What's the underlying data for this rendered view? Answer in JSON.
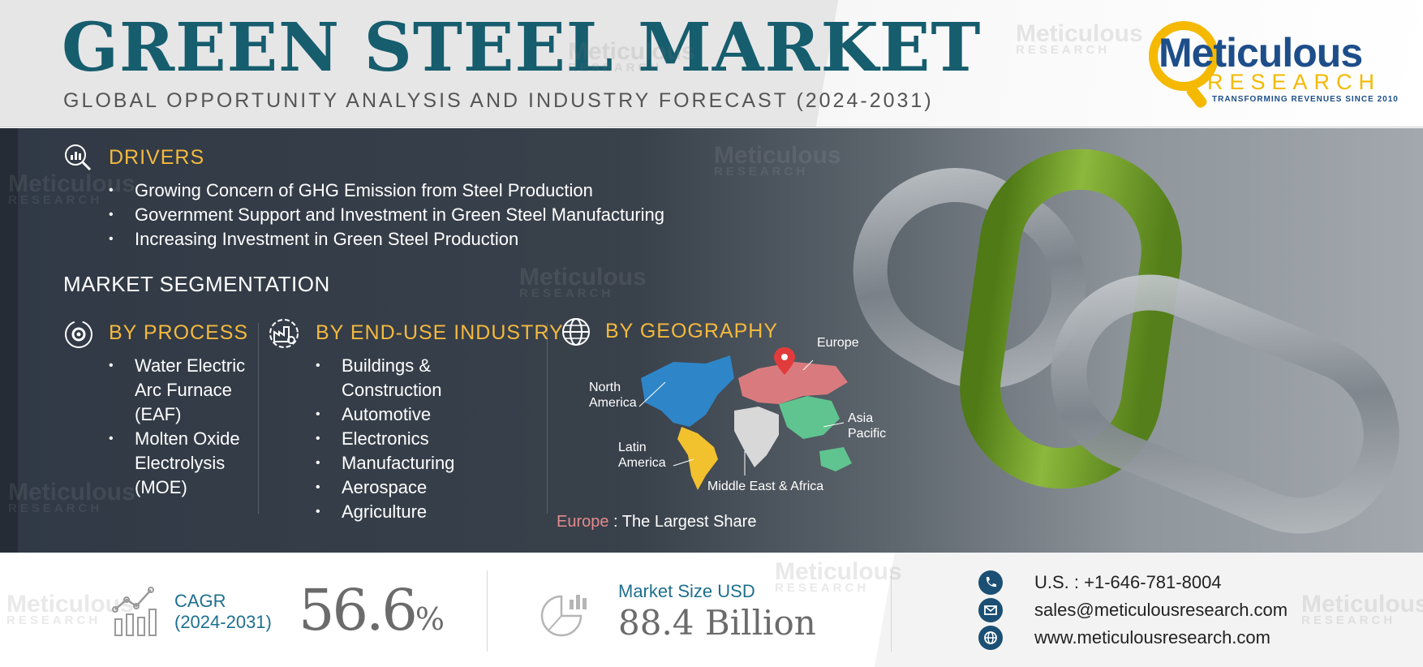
{
  "header": {
    "title": "GREEN STEEL MARKET",
    "subtitle": "GLOBAL OPPORTUNITY ANALYSIS AND INDUSTRY FORECAST (2024-2031)"
  },
  "logo": {
    "name": "Meticulous",
    "research": "RESEARCH",
    "tagline": "TRANSFORMING REVENUES SINCE 2010",
    "ring_color": "#f4b900",
    "name_color": "#1d4e8a"
  },
  "watermark": {
    "top": "Meticulous",
    "bottom": "RESEARCH"
  },
  "drivers": {
    "heading": "DRIVERS",
    "icon": "magnifier-chart-icon",
    "items": [
      "Growing Concern of GHG Emission from Steel Production",
      "Government Support and Investment in Green Steel Manufacturing",
      "Increasing Investment in Green Steel Production"
    ]
  },
  "segmentation": {
    "title": "MARKET SEGMENTATION",
    "by_process": {
      "heading": "BY PROCESS",
      "icon": "gear-cycle-icon",
      "items": [
        [
          "Water Electric",
          "Arc Furnace",
          "(EAF)"
        ],
        [
          "Molten Oxide",
          "Electrolysis",
          "(MOE)"
        ]
      ]
    },
    "by_end_use": {
      "heading": "BY END-USE INDUSTRY",
      "icon": "factory-gear-icon",
      "items": [
        [
          "Buildings &",
          "Construction"
        ],
        [
          "Automotive"
        ],
        [
          "Electronics"
        ],
        [
          "Manufacturing"
        ],
        [
          "Aerospace"
        ],
        [
          "Agriculture"
        ]
      ]
    },
    "by_geography": {
      "heading": "BY GEOGRAPHY",
      "icon": "globe-icon",
      "regions": {
        "north_america": [
          "North",
          "America"
        ],
        "latin_america": [
          "Latin",
          "America"
        ],
        "europe": [
          "Europe"
        ],
        "asia_pacific": [
          "Asia",
          "Pacific"
        ],
        "mea": [
          "Middle East & Africa"
        ]
      },
      "largest_region": "Europe",
      "largest_suffix": " : The Largest Share",
      "colors": {
        "north_america": "#2e86c8",
        "latin_america": "#f2c12e",
        "europe": "#d97b7e",
        "asia_pacific": "#5fc48f",
        "mea": "#d8d8d8"
      }
    }
  },
  "footer": {
    "cagr_label": [
      "CAGR",
      "(2024-2031)"
    ],
    "cagr_value": "56.6",
    "cagr_unit": "%",
    "market_size_label": "Market Size USD",
    "market_size_value": "88.4 Billion",
    "contacts": {
      "phone": "U.S. : +1-646-781-8004",
      "email": "sales@meticulousresearch.com",
      "web": "www.meticulousresearch.com"
    }
  },
  "colors": {
    "title": "#165d6e",
    "accent": "#f4b93d",
    "chain_green": "#6f9a2a",
    "chain_steel": "#8a9097"
  }
}
